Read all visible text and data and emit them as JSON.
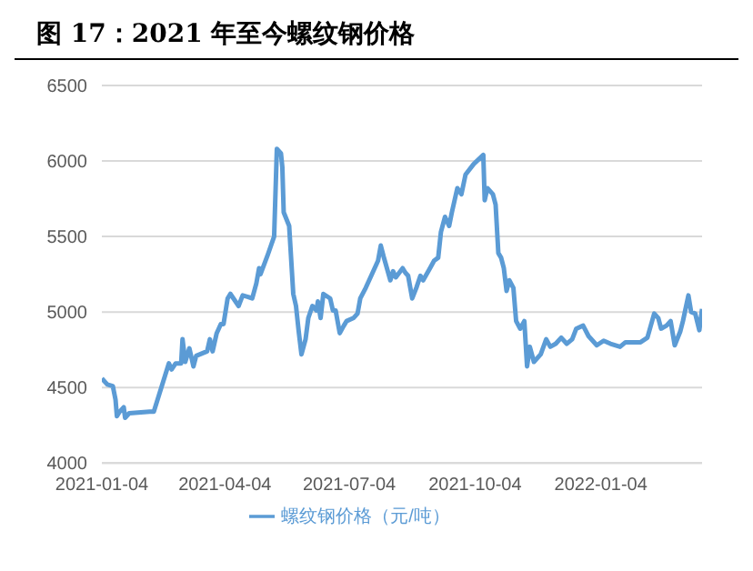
{
  "chart_data": {
    "type": "line",
    "title": "图 17：2021 年至今螺纹钢价格",
    "x": [
      "2021-01-04",
      "2021-01-08",
      "2021-01-12",
      "2021-01-14",
      "2021-01-15",
      "2021-01-17",
      "2021-01-20",
      "2021-01-21",
      "2021-01-24",
      "2021-02-08",
      "2021-02-11",
      "2021-02-22",
      "2021-02-24",
      "2021-02-27",
      "2021-03-03",
      "2021-03-04",
      "2021-03-06",
      "2021-03-09",
      "2021-03-12",
      "2021-03-14",
      "2021-03-22",
      "2021-03-24",
      "2021-03-26",
      "2021-03-29",
      "2021-04-01",
      "2021-04-03",
      "2021-04-06",
      "2021-04-08",
      "2021-04-14",
      "2021-04-17",
      "2021-04-21",
      "2021-04-24",
      "2021-04-27",
      "2021-04-29",
      "2021-04-30",
      "2021-05-05",
      "2021-05-10",
      "2021-05-12",
      "2021-05-15",
      "2021-05-16",
      "2021-05-17",
      "2021-05-21",
      "2021-05-24",
      "2021-05-26",
      "2021-05-28",
      "2021-05-30",
      "2021-06-02",
      "2021-06-04",
      "2021-06-07",
      "2021-06-10",
      "2021-06-11",
      "2021-06-13",
      "2021-06-15",
      "2021-06-20",
      "2021-06-22",
      "2021-06-24",
      "2021-06-27",
      "2021-06-30",
      "2021-07-02",
      "2021-07-07",
      "2021-07-10",
      "2021-07-12",
      "2021-07-16",
      "2021-07-21",
      "2021-07-25",
      "2021-07-27",
      "2021-07-29",
      "2021-08-03",
      "2021-08-05",
      "2021-08-07",
      "2021-08-12",
      "2021-08-14",
      "2021-08-16",
      "2021-08-19",
      "2021-08-22",
      "2021-08-25",
      "2021-08-27",
      "2021-09-01",
      "2021-09-04",
      "2021-09-07",
      "2021-09-09",
      "2021-09-12",
      "2021-09-15",
      "2021-09-17",
      "2021-09-21",
      "2021-09-24",
      "2021-09-27",
      "2021-10-03",
      "2021-10-10",
      "2021-10-11",
      "2021-10-13",
      "2021-10-17",
      "2021-10-19",
      "2021-10-21",
      "2021-10-23",
      "2021-10-25",
      "2021-10-27",
      "2021-10-29",
      "2021-11-01",
      "2021-11-03",
      "2021-11-06",
      "2021-11-09",
      "2021-11-11",
      "2021-11-13",
      "2021-11-16",
      "2021-11-21",
      "2021-11-25",
      "2021-11-28",
      "2021-12-02",
      "2021-12-06",
      "2021-12-10",
      "2021-12-14",
      "2021-12-17",
      "2021-12-22",
      "2021-12-26",
      "2022-01-01",
      "2022-01-06",
      "2022-01-11",
      "2022-01-18",
      "2022-01-22",
      "2022-02-02",
      "2022-02-07",
      "2022-02-12",
      "2022-02-15",
      "2022-02-17",
      "2022-02-21",
      "2022-02-24",
      "2022-02-27",
      "2022-03-03",
      "2022-03-05",
      "2022-03-09",
      "2022-03-11",
      "2022-03-14",
      "2022-03-17",
      "2022-03-19"
    ],
    "series": [
      {
        "name": "螺纹钢价格（元/吨）",
        "color": "#5b9bd5",
        "values": [
          4560,
          4520,
          4510,
          4420,
          4310,
          4340,
          4370,
          4300,
          4330,
          4340,
          4340,
          4660,
          4620,
          4660,
          4660,
          4820,
          4670,
          4760,
          4640,
          4710,
          4740,
          4820,
          4740,
          4860,
          4920,
          4920,
          5090,
          5120,
          5040,
          5110,
          5100,
          5090,
          5190,
          5290,
          5250,
          5370,
          5500,
          6080,
          6050,
          5960,
          5660,
          5570,
          5120,
          5040,
          4870,
          4720,
          4820,
          4960,
          5040,
          5010,
          5070,
          4960,
          5120,
          5090,
          5010,
          5010,
          4860,
          4910,
          4940,
          4960,
          4990,
          5090,
          5160,
          5260,
          5340,
          5440,
          5370,
          5210,
          5270,
          5230,
          5290,
          5260,
          5240,
          5090,
          5160,
          5240,
          5210,
          5290,
          5340,
          5360,
          5530,
          5630,
          5570,
          5660,
          5820,
          5780,
          5910,
          5980,
          6040,
          5740,
          5820,
          5780,
          5710,
          5390,
          5360,
          5290,
          5140,
          5210,
          5160,
          4940,
          4890,
          4940,
          4640,
          4770,
          4670,
          4720,
          4820,
          4770,
          4790,
          4830,
          4790,
          4820,
          4890,
          4910,
          4840,
          4780,
          4810,
          4790,
          4770,
          4800,
          4800,
          4830,
          4990,
          4960,
          4890,
          4910,
          4940,
          4780,
          4870,
          4940,
          5110,
          5000,
          4990,
          4880,
          5020
        ]
      }
    ],
    "xlim": [
      "2021-01-04",
      "2022-03-19"
    ],
    "xticks": [
      "2021-01-04",
      "2021-04-04",
      "2021-07-04",
      "2021-10-04",
      "2022-01-04"
    ],
    "ylim": [
      4000,
      6500
    ],
    "yticks": [
      4000,
      4500,
      5000,
      5500,
      6000,
      6500
    ],
    "grid": "y",
    "legend": "bottom",
    "marker": "none",
    "line_style": "solid"
  }
}
